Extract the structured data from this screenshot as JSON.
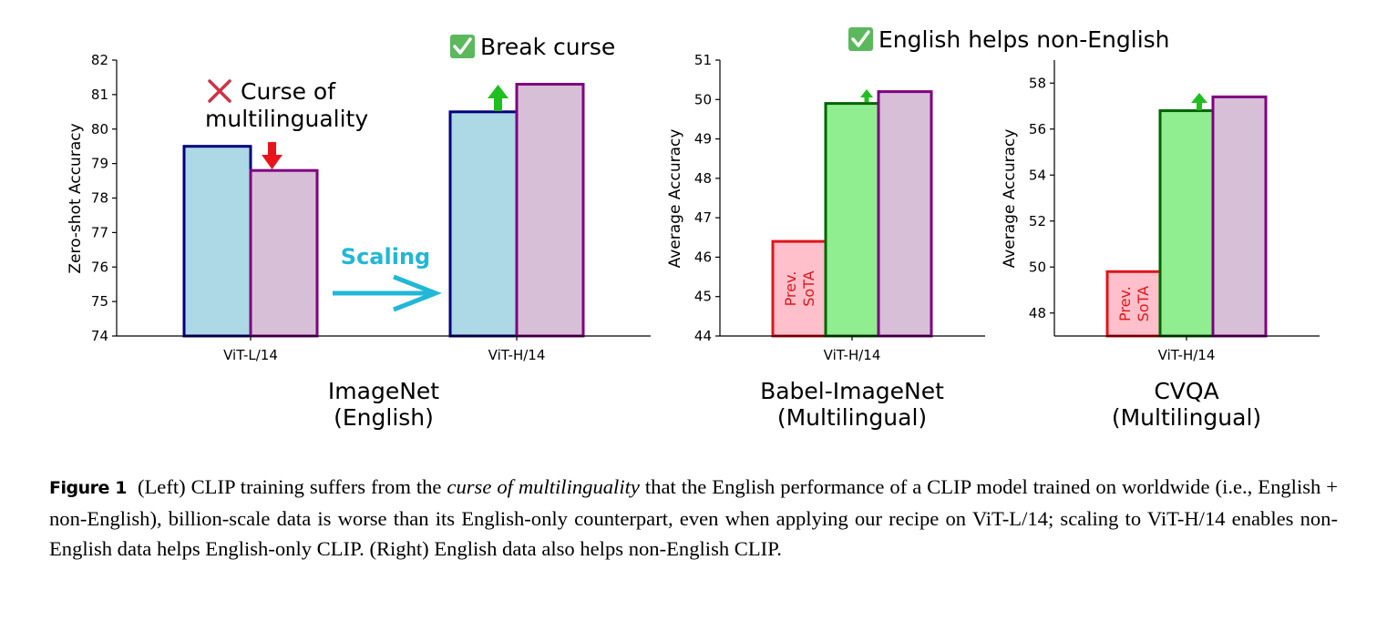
{
  "chart_data": [
    {
      "type": "bar",
      "panel": "ImageNet",
      "xlabel_line1": "ImageNet",
      "xlabel_line2": "(English)",
      "ylabel": "Zero-shot Accuracy",
      "ylim": [
        74,
        82
      ],
      "yticks": [
        "74",
        "75",
        "76",
        "77",
        "78",
        "79",
        "80",
        "81",
        "82"
      ],
      "categories": [
        "ViT-L/14",
        "ViT-H/14"
      ],
      "series": [
        {
          "values": [
            79.5,
            80.5
          ],
          "fill": "#add8e6",
          "stroke": "#000080"
        },
        {
          "values": [
            78.8,
            81.3
          ],
          "fill": "#d8bfd8",
          "stroke": "#800080"
        }
      ],
      "annotations": {
        "curse": "Curse of",
        "curse2": "multilinguality",
        "break": "Break curse",
        "scaling": "Scaling"
      }
    },
    {
      "type": "bar",
      "panel": "Babel-ImageNet",
      "xlabel_line1": "Babel-ImageNet",
      "xlabel_line2": "(Multilingual)",
      "ylabel": "Average Accuracy",
      "ylim": [
        44,
        51
      ],
      "yticks": [
        "44",
        "45",
        "46",
        "47",
        "48",
        "49",
        "50",
        "51"
      ],
      "categories": [
        "ViT-H/14"
      ],
      "bars": [
        {
          "value": 46.4,
          "fill": "#ffc0cb",
          "stroke": "#e0141b",
          "label_line1": "Prev.",
          "label_line2": "SoTA"
        },
        {
          "value": 49.9,
          "fill": "#90ee90",
          "stroke": "#006400"
        },
        {
          "value": 50.2,
          "fill": "#d8bfd8",
          "stroke": "#800080"
        }
      ]
    },
    {
      "type": "bar",
      "panel": "CVQA",
      "xlabel_line1": "CVQA",
      "xlabel_line2": "(Multilingual)",
      "ylabel": "Average Accuracy",
      "ylim": [
        47,
        59
      ],
      "yticks": [
        "48",
        "50",
        "52",
        "54",
        "56",
        "58"
      ],
      "categories": [
        "ViT-H/14"
      ],
      "bars": [
        {
          "value": 49.8,
          "fill": "#ffc0cb",
          "stroke": "#e0141b",
          "label_line1": "Prev.",
          "label_line2": "SoTA"
        },
        {
          "value": 56.8,
          "fill": "#90ee90",
          "stroke": "#006400"
        },
        {
          "value": 57.4,
          "fill": "#d8bfd8",
          "stroke": "#800080"
        }
      ]
    }
  ],
  "right_title": "English helps non-English",
  "caption": {
    "label": "Figure 1",
    "part1": "(Left) CLIP training suffers from the ",
    "italic": "curse of multilinguality",
    "part2": " that the English performance of a CLIP model trained on worldwide (i.e., English + non-English), billion-scale data is worse than its English-only counterpart, even when applying our recipe on ViT-L/14; scaling to ViT-H/14 enables non-English data helps English-only CLIP. (Right) English data also helps non-English CLIP."
  },
  "colors": {
    "up_arrow": "#1fbf1f",
    "down_arrow": "#e8141c",
    "check": "#5cb85c",
    "cross": "#cc3344",
    "scaling": "#22b7d6"
  }
}
